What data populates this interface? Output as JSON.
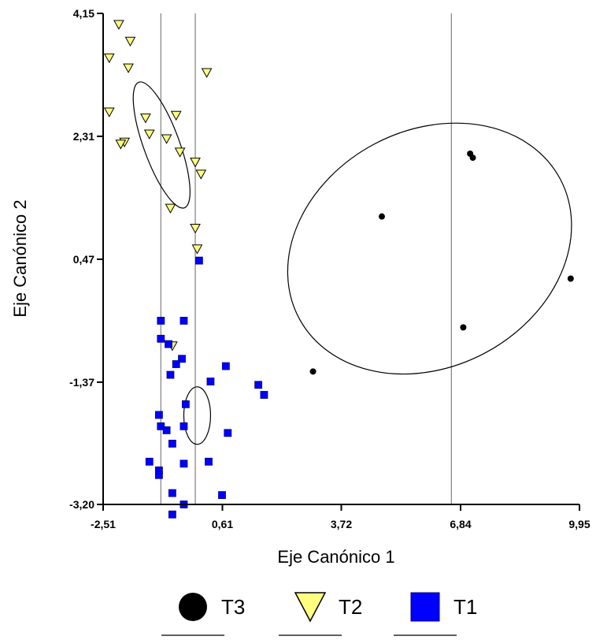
{
  "chart_data": {
    "type": "scatter",
    "xlabel": "Eje Canónico 1",
    "ylabel": "Eje Canónico 2",
    "xlim": [
      -2.51,
      9.95
    ],
    "ylim": [
      -3.2,
      4.15
    ],
    "x_ticks": [
      -2.51,
      0.61,
      3.72,
      6.84,
      9.95
    ],
    "x_tick_labels": [
      "-2,51",
      "0,61",
      "3,72",
      "6,84",
      "9,95"
    ],
    "y_ticks": [
      -3.2,
      -1.37,
      0.47,
      2.31,
      4.15
    ],
    "y_tick_labels": [
      "-3,20",
      "-1,37",
      "0,47",
      "2,31",
      "4,15"
    ],
    "vertical_lines_x": [
      -1.0,
      -0.1,
      6.6
    ],
    "series": [
      {
        "name": "T3",
        "marker": "circle",
        "color": "#000000",
        "points": [
          [
            7.09,
            2.05
          ],
          [
            7.16,
            1.99
          ],
          [
            4.78,
            1.11
          ],
          [
            9.72,
            0.18
          ],
          [
            6.91,
            -0.55
          ],
          [
            2.98,
            -1.21
          ]
        ],
        "ellipse": {
          "cx": 6.03,
          "cy": 0.63,
          "rx": 3.87,
          "ry": 1.77,
          "angle_deg": -28
        }
      },
      {
        "name": "T2",
        "marker": "triangle-down",
        "color": "#ffff80",
        "points": [
          [
            -2.1,
            3.98
          ],
          [
            -1.8,
            3.73
          ],
          [
            -2.35,
            3.48
          ],
          [
            -1.85,
            3.33
          ],
          [
            0.2,
            3.26
          ],
          [
            -2.35,
            2.67
          ],
          [
            -1.4,
            2.58
          ],
          [
            -0.6,
            2.62
          ],
          [
            -1.3,
            2.34
          ],
          [
            -0.85,
            2.27
          ],
          [
            -1.95,
            2.22
          ],
          [
            -2.05,
            2.19
          ],
          [
            -0.5,
            2.07
          ],
          [
            -0.1,
            1.92
          ],
          [
            0.05,
            1.74
          ],
          [
            -0.75,
            1.23
          ],
          [
            -0.1,
            0.93
          ],
          [
            -0.05,
            0.62
          ],
          [
            -0.7,
            -0.83
          ]
        ],
        "ellipse": {
          "cx": -0.98,
          "cy": 2.18,
          "rx": 0.47,
          "ry": 1.0,
          "angle_deg": -20
        }
      },
      {
        "name": "T1",
        "marker": "square",
        "color": "#0000ff",
        "points": [
          [
            0.0,
            0.45
          ],
          [
            -1.0,
            -0.45
          ],
          [
            -0.4,
            -0.45
          ],
          [
            -1.0,
            -0.72
          ],
          [
            -0.8,
            -0.8
          ],
          [
            -0.45,
            -1.02
          ],
          [
            -0.6,
            -1.1
          ],
          [
            0.7,
            -1.13
          ],
          [
            -0.75,
            -1.26
          ],
          [
            0.3,
            -1.36
          ],
          [
            1.55,
            -1.41
          ],
          [
            1.7,
            -1.56
          ],
          [
            -0.35,
            -1.7
          ],
          [
            -1.05,
            -1.86
          ],
          [
            -1.0,
            -2.03
          ],
          [
            -0.85,
            -2.09
          ],
          [
            -0.4,
            -2.03
          ],
          [
            0.75,
            -2.13
          ],
          [
            -0.7,
            -2.29
          ],
          [
            -1.3,
            -2.56
          ],
          [
            0.25,
            -2.56
          ],
          [
            -0.4,
            -2.59
          ],
          [
            -1.05,
            -2.69
          ],
          [
            -1.05,
            -2.76
          ],
          [
            -0.7,
            -3.03
          ],
          [
            0.6,
            -3.06
          ],
          [
            -0.4,
            -3.2
          ],
          [
            -0.7,
            -3.35
          ]
        ],
        "ellipse": {
          "cx": -0.05,
          "cy": -1.87,
          "rx": 0.35,
          "ry": 0.43,
          "angle_deg": 0
        }
      }
    ],
    "legend": {
      "placement": "bottom",
      "entries": [
        {
          "label": "T3",
          "marker": "circle",
          "color": "#000000"
        },
        {
          "label": "T2",
          "marker": "triangle-down",
          "color": "#ffff80"
        },
        {
          "label": "T1",
          "marker": "square",
          "color": "#0000ff"
        }
      ]
    },
    "grid": false
  }
}
